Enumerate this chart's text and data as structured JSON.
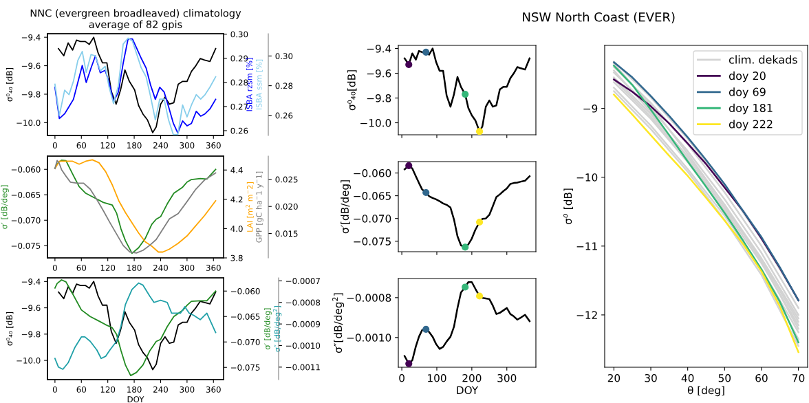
{
  "chart_data": [
    {
      "type": "line",
      "title": "NNC (evergreen broadleaved) climatology\naverage of 82 gpis",
      "ylabel": "σ⁰₄₀ [dB]",
      "y2label": "ISBA rzsm [%]",
      "y3label": "ISBA ssm [%]",
      "xlim": [
        -17,
        383
      ],
      "xticks": [
        0,
        60,
        120,
        180,
        240,
        300,
        360
      ],
      "ylim": [
        -10.09,
        -9.375
      ],
      "yticks": [
        -9.4,
        -9.6,
        -9.8,
        {
          "value": -10.0,
          "label": "−10.0"
        }
      ],
      "y2lim": [
        0.258,
        0.3002
      ],
      "y2ticks": [
        0.26,
        0.27,
        0.28,
        0.29,
        {
          "value": 0.3,
          "label": "0.30"
        }
      ],
      "y3lim": [
        0.2465,
        0.315
      ],
      "y3ticks": [
        0.26,
        0.28,
        {
          "value": 0.3,
          "label": "0.30"
        }
      ],
      "series": [
        {
          "color": "#000000",
          "x": [
            8,
            20,
            30,
            40,
            49,
            58,
            69,
            78,
            88,
            98,
            108,
            118,
            128,
            139,
            149,
            159,
            169,
            181,
            190,
            200,
            210,
            222,
            230,
            240,
            250,
            260,
            270,
            280,
            290,
            300,
            310,
            320,
            330,
            340,
            352,
            365
          ],
          "values": [
            -9.48,
            -9.53,
            -9.44,
            -9.49,
            -9.42,
            -9.43,
            -9.43,
            -9.45,
            -9.4,
            -9.51,
            -9.58,
            -9.58,
            -9.78,
            -9.87,
            -9.77,
            -9.63,
            -9.71,
            -9.77,
            -9.88,
            -9.94,
            -9.98,
            -10.07,
            -10.03,
            -9.87,
            -9.82,
            -9.87,
            -9.86,
            -9.73,
            -9.71,
            -9.71,
            -9.64,
            -9.6,
            -9.55,
            -9.56,
            -9.57,
            -9.48
          ]
        },
        {
          "color": "#0000ff",
          "axis": "y2",
          "x": [
            0,
            10,
            22,
            32,
            42,
            52,
            62,
            71,
            82,
            92,
            103,
            114,
            123,
            133,
            144,
            155,
            166,
            176,
            186,
            196,
            207,
            217,
            228,
            238,
            248,
            258,
            269,
            279,
            290,
            300,
            310,
            321,
            331,
            341,
            352,
            365
          ],
          "values": [
            0.278,
            0.265,
            0.267,
            0.27,
            0.273,
            0.28,
            0.287,
            0.28,
            0.286,
            0.291,
            0.284,
            0.285,
            0.28,
            0.272,
            0.276,
            0.288,
            0.298,
            0.298,
            0.294,
            0.29,
            0.286,
            0.279,
            0.273,
            0.278,
            0.276,
            0.27,
            0.263,
            0.259,
            0.264,
            0.262,
            0.263,
            0.268,
            0.266,
            0.267,
            0.269,
            0.273
          ]
        },
        {
          "color": "#87ceeb",
          "axis": "y3",
          "x": [
            0,
            10,
            22,
            32,
            42,
            52,
            62,
            71,
            82,
            92,
            103,
            114,
            123,
            133,
            144,
            155,
            166,
            176,
            186,
            196,
            207,
            217,
            228,
            238,
            248,
            258,
            269,
            279,
            290,
            300,
            310,
            321,
            331,
            341,
            352,
            365
          ],
          "values": [
            0.281,
            0.26,
            0.277,
            0.274,
            0.283,
            0.297,
            0.303,
            0.289,
            0.301,
            0.3,
            0.29,
            0.293,
            0.279,
            0.268,
            0.28,
            0.308,
            0.312,
            0.31,
            0.301,
            0.292,
            0.286,
            0.273,
            0.257,
            0.271,
            0.271,
            0.257,
            0.247,
            0.247,
            0.267,
            0.259,
            0.267,
            0.274,
            0.271,
            0.274,
            0.279,
            0.286
          ]
        }
      ]
    },
    {
      "type": "line",
      "ylabel": "σ′ [dB/deg]",
      "y2label": "LAI [m$^{2}$ m$^{−}$2]",
      "y3label": "GPP [gC ha$^{−}$1 y$^{−}$1]",
      "xlim": [
        -17,
        383
      ],
      "xticks": [
        0,
        60,
        120,
        180,
        240,
        300,
        360
      ],
      "ylim": [
        -0.0774,
        -0.0574
      ],
      "yticks": [
        {
          "value": -0.06,
          "label": "−0.060"
        },
        -0.065,
        {
          "value": -0.07,
          "label": "−0.070"
        },
        -0.075
      ],
      "y2lim": [
        3.8,
        4.495
      ],
      "y2ticks": [
        3.8,
        {
          "value": 4,
          "label": "4.0"
        },
        4.2,
        4.4
      ],
      "y3lim": [
        0.0105,
        0.0293
      ],
      "y3ticks": [
        0.015,
        {
          "value": 0.02,
          "label": "0.020"
        },
        0.025
      ],
      "series": [
        {
          "color": "#228b22",
          "x": [
            0,
            5,
            15,
            25,
            40,
            55,
            70,
            90,
            110,
            130,
            140,
            150,
            160,
            175,
            190,
            205,
            220,
            230,
            240,
            255,
            270,
            290,
            300,
            310,
            330,
            345,
            365
          ],
          "values": [
            -0.0598,
            -0.0589,
            -0.0582,
            -0.0583,
            -0.0609,
            -0.0634,
            -0.0647,
            -0.0656,
            -0.0665,
            -0.067,
            -0.0686,
            -0.0717,
            -0.074,
            -0.0765,
            -0.0754,
            -0.0736,
            -0.0708,
            -0.0698,
            -0.0693,
            -0.0668,
            -0.0647,
            -0.0635,
            -0.0625,
            -0.062,
            -0.0618,
            -0.0619,
            -0.06
          ]
        },
        {
          "color": "#ffa500",
          "axis": "y2",
          "x": [
            0,
            10,
            25,
            40,
            55,
            70,
            85,
            100,
            115,
            130,
            145,
            160,
            175,
            190,
            205,
            220,
            235,
            245,
            260,
            280,
            300,
            320,
            340,
            365
          ],
          "values": [
            4.41,
            4.46,
            4.46,
            4.46,
            4.44,
            4.46,
            4.47,
            4.45,
            4.39,
            4.3,
            4.19,
            4.11,
            4.04,
            3.97,
            3.91,
            3.88,
            3.84,
            3.84,
            3.86,
            3.9,
            3.95,
            4.02,
            4.09,
            4.19
          ]
        },
        {
          "color": "#808080",
          "axis": "y3",
          "x": [
            0,
            5,
            10,
            15,
            25,
            35,
            50,
            65,
            80,
            95,
            110,
            125,
            140,
            155,
            170,
            185,
            200,
            215,
            230,
            245,
            260,
            280,
            300,
            320,
            340,
            365
          ],
          "values": [
            0.027,
            0.0285,
            0.0279,
            0.0268,
            0.0256,
            0.0245,
            0.0243,
            0.0243,
            0.0232,
            0.0213,
            0.0192,
            0.017,
            0.0149,
            0.0128,
            0.0116,
            0.0114,
            0.0119,
            0.0128,
            0.0139,
            0.0158,
            0.0177,
            0.0187,
            0.0209,
            0.0232,
            0.0249,
            0.0262
          ]
        }
      ]
    },
    {
      "type": "line",
      "xlabel": "DOY",
      "ylabel": "σ⁰₄₀ [dB]",
      "y2label": "σ′ [dB/deg]",
      "y3label": "σ″ [dB/deg$^{2}$]",
      "xlim": [
        -17,
        383
      ],
      "xticks": [
        0,
        60,
        120,
        180,
        240,
        300,
        360
      ],
      "ylim": [
        -10.146,
        -9.372
      ],
      "yticks": [
        -9.4,
        -9.6,
        -9.8,
        {
          "value": -10.0,
          "label": "−10.0"
        }
      ],
      "y2lim": [
        -0.0774,
        -0.0574
      ],
      "y2ticks": [
        {
          "value": -0.06,
          "label": "−0.060"
        },
        -0.065,
        {
          "value": -0.07,
          "label": "−0.070"
        },
        -0.075
      ],
      "y3lim": [
        -0.001158,
        -0.000686
      ],
      "y3ticks": [
        -0.0007,
        -0.0008,
        -0.0009,
        {
          "value": -0.001,
          "label": "−0.0010"
        },
        -0.0011
      ],
      "series": [
        {
          "color": "#000000",
          "x": [
            8,
            20,
            30,
            40,
            49,
            58,
            69,
            78,
            88,
            98,
            108,
            118,
            128,
            139,
            149,
            159,
            169,
            181,
            190,
            200,
            210,
            222,
            230,
            240,
            250,
            260,
            270,
            280,
            290,
            300,
            310,
            320,
            330,
            340,
            352,
            365
          ],
          "values": [
            -9.48,
            -9.53,
            -9.44,
            -9.49,
            -9.42,
            -9.43,
            -9.43,
            -9.45,
            -9.4,
            -9.51,
            -9.58,
            -9.58,
            -9.78,
            -9.87,
            -9.77,
            -9.63,
            -9.71,
            -9.77,
            -9.88,
            -9.94,
            -9.98,
            -10.07,
            -10.03,
            -9.87,
            -9.82,
            -9.87,
            -9.86,
            -9.73,
            -9.71,
            -9.71,
            -9.64,
            -9.6,
            -9.55,
            -9.56,
            -9.57,
            -9.48
          ]
        },
        {
          "color": "#228b22",
          "axis": "y2",
          "x": [
            0,
            5,
            15,
            25,
            40,
            60,
            80,
            100,
            115,
            130,
            140,
            150,
            160,
            172,
            185,
            200,
            215,
            230,
            240,
            255,
            270,
            290,
            300,
            310,
            330,
            345,
            365
          ],
          "values": [
            -0.0594,
            -0.0585,
            -0.0578,
            -0.0582,
            -0.0605,
            -0.0637,
            -0.065,
            -0.0659,
            -0.0666,
            -0.0672,
            -0.0685,
            -0.0717,
            -0.0745,
            -0.0766,
            -0.076,
            -0.0745,
            -0.0718,
            -0.0699,
            -0.0695,
            -0.067,
            -0.065,
            -0.0638,
            -0.0628,
            -0.062,
            -0.0619,
            -0.0619,
            -0.06
          ]
        },
        {
          "color": "#20a0a8",
          "axis": "y3",
          "x": [
            0,
            8,
            18,
            30,
            45,
            60,
            68,
            80,
            95,
            105,
            115,
            125,
            140,
            150,
            160,
            175,
            190,
            200,
            215,
            225,
            240,
            255,
            265,
            275,
            285,
            295,
            305,
            315,
            330,
            345,
            365
          ],
          "values": [
            -0.00106,
            -0.0011,
            -0.00111,
            -0.00108,
            -0.00101,
            -0.00096,
            -0.00096,
            -0.00098,
            -0.00102,
            -0.00106,
            -0.00105,
            -0.00102,
            -0.00098,
            -0.00091,
            -0.00081,
            -0.00074,
            -0.00071,
            -0.00072,
            -0.00077,
            -0.0008,
            -0.00079,
            -0.0008,
            -0.00085,
            -0.00085,
            -0.00085,
            -0.00082,
            -0.00085,
            -0.00086,
            -0.00088,
            -0.00085,
            -0.00094
          ]
        }
      ]
    },
    {
      "type": "line",
      "ylabel": "σ⁰₄₀[dB]",
      "tick_labels": "y",
      "xlim": [
        -10,
        383
      ],
      "xticks": [
        0,
        100,
        200,
        300
      ],
      "ylim": [
        -10.097,
        -9.375
      ],
      "yticks": [
        -9.4,
        -9.6,
        -9.8,
        {
          "value": -10.0,
          "label": "−10.0"
        }
      ],
      "series": [
        {
          "color": "#000000",
          "x": [
            8,
            20,
            30,
            40,
            49,
            58,
            69,
            78,
            88,
            98,
            108,
            118,
            128,
            139,
            149,
            159,
            169,
            181,
            190,
            200,
            210,
            222,
            230,
            240,
            250,
            260,
            270,
            280,
            290,
            300,
            310,
            320,
            330,
            340,
            352,
            365
          ],
          "values": [
            -9.48,
            -9.53,
            -9.44,
            -9.49,
            -9.42,
            -9.43,
            -9.43,
            -9.45,
            -9.4,
            -9.51,
            -9.58,
            -9.58,
            -9.78,
            -9.87,
            -9.77,
            -9.63,
            -9.71,
            -9.77,
            -9.88,
            -9.94,
            -9.98,
            -10.07,
            -10.03,
            -9.87,
            -9.82,
            -9.87,
            -9.86,
            -9.73,
            -9.71,
            -9.71,
            -9.64,
            -9.6,
            -9.55,
            -9.56,
            -9.57,
            -9.48
          ]
        },
        {
          "type": "scatter",
          "marker": "circle",
          "x": [
            20,
            69,
            181,
            222
          ],
          "values": [
            -9.53,
            -9.43,
            -9.77,
            -10.07
          ],
          "colors": [
            "#440154",
            "#31688e",
            "#35b779",
            "#fde725"
          ]
        }
      ]
    },
    {
      "type": "line",
      "ylabel": "σ′[dB/deg]",
      "tick_labels": "y",
      "xlim": [
        -10,
        383
      ],
      "xticks": [
        0,
        100,
        200,
        300
      ],
      "ylim": [
        -0.0773,
        -0.0575
      ],
      "yticks": [
        {
          "value": -0.06,
          "label": "−0.060"
        },
        -0.065,
        {
          "value": -0.07,
          "label": "−0.070"
        },
        -0.075
      ],
      "series": [
        {
          "color": "#000000",
          "x": [
            8,
            20,
            30,
            40,
            49,
            58,
            69,
            78,
            88,
            98,
            108,
            118,
            128,
            139,
            149,
            159,
            169,
            181,
            190,
            200,
            210,
            222,
            230,
            240,
            250,
            260,
            270,
            280,
            290,
            300,
            310,
            320,
            330,
            340,
            352,
            365
          ],
          "values": [
            -0.0592,
            -0.0584,
            -0.059,
            -0.0607,
            -0.0622,
            -0.0636,
            -0.0643,
            -0.0651,
            -0.0655,
            -0.0658,
            -0.0662,
            -0.0667,
            -0.067,
            -0.0676,
            -0.0702,
            -0.0739,
            -0.0759,
            -0.0763,
            -0.0757,
            -0.0744,
            -0.0725,
            -0.0708,
            -0.0701,
            -0.07,
            -0.0692,
            -0.0673,
            -0.0653,
            -0.0647,
            -0.064,
            -0.0634,
            -0.0624,
            -0.0622,
            -0.0621,
            -0.0619,
            -0.0617,
            -0.0607
          ]
        },
        {
          "type": "scatter",
          "marker": "circle",
          "x": [
            20,
            69,
            181,
            222
          ],
          "values": [
            -0.0584,
            -0.0643,
            -0.0763,
            -0.0708
          ],
          "colors": [
            "#440154",
            "#31688e",
            "#35b779",
            "#fde725"
          ]
        }
      ]
    },
    {
      "type": "line",
      "xlabel": "DOY",
      "ylabel": "σ″[dB/deg$^{2}$]",
      "xlim": [
        -10,
        383
      ],
      "xticks": [
        0,
        100,
        200,
        300
      ],
      "ylim": [
        -0.001149,
        -0.000704
      ],
      "yticks": [
        -0.0008,
        {
          "value": -0.001,
          "label": "−0.0010"
        }
      ],
      "series": [
        {
          "color": "#000000",
          "x": [
            8,
            20,
            30,
            40,
            49,
            58,
            69,
            78,
            88,
            98,
            108,
            118,
            128,
            139,
            149,
            159,
            169,
            181,
            190,
            200,
            210,
            222,
            230,
            240,
            250,
            260,
            270,
            280,
            290,
            300,
            310,
            320,
            330,
            340,
            352,
            365
          ],
          "values": [
            -0.001093,
            -0.001131,
            -0.001114,
            -0.001045,
            -0.000996,
            -0.000963,
            -0.000959,
            -0.000972,
            -0.000996,
            -0.001033,
            -0.001057,
            -0.001047,
            -0.00102,
            -0.000996,
            -0.000946,
            -0.000852,
            -0.000774,
            -0.000747,
            -0.000722,
            -0.000722,
            -0.000755,
            -0.000792,
            -0.000801,
            -0.000804,
            -0.000807,
            -0.00084,
            -0.000882,
            -0.000876,
            -0.000864,
            -0.000852,
            -0.000882,
            -0.000894,
            -0.00091,
            -0.0009,
            -0.000886,
            -0.000918
          ]
        },
        {
          "type": "scatter",
          "marker": "circle",
          "x": [
            20,
            69,
            181,
            222
          ],
          "values": [
            -0.001131,
            -0.000959,
            -0.000747,
            -0.000792
          ],
          "colors": [
            "#440154",
            "#31688e",
            "#35b779",
            "#fde725"
          ]
        }
      ]
    },
    {
      "type": "line",
      "title": "NSW North Coast (EVER)",
      "xlabel": "θ [deg]",
      "ylabel": "σ$^{o}$ [dB]",
      "legend": "top right",
      "xlim": [
        17.5,
        72.5
      ],
      "xticks": [
        20,
        30,
        40,
        50,
        60,
        70
      ],
      "ylim": [
        -12.76,
        -8.085
      ],
      "yticks": [
        -9,
        -10,
        -11,
        -12
      ],
      "series": [
        {
          "name": "clim. dekads",
          "color": "#d3d3d3",
          "x": [
            20,
            30,
            40,
            50,
            60,
            70
          ],
          "values": [
            -8.32,
            -8.84,
            -9.44,
            -10.12,
            -10.9,
            -11.78
          ]
        },
        {
          "color": "#d3d3d3",
          "x": [
            20,
            30,
            40,
            50,
            60,
            70
          ],
          "values": [
            -8.4,
            -8.92,
            -9.52,
            -10.22,
            -11.0,
            -11.9
          ]
        },
        {
          "color": "#d3d3d3",
          "x": [
            20,
            30,
            40,
            50,
            60,
            70
          ],
          "values": [
            -8.48,
            -9.0,
            -9.62,
            -10.32,
            -11.1,
            -12.0
          ]
        },
        {
          "color": "#d3d3d3",
          "x": [
            20,
            30,
            40,
            50,
            60,
            70
          ],
          "values": [
            -8.55,
            -9.08,
            -9.7,
            -10.4,
            -11.18,
            -12.05
          ]
        },
        {
          "color": "#d3d3d3",
          "x": [
            20,
            30,
            40,
            50,
            60,
            70
          ],
          "values": [
            -8.62,
            -9.15,
            -9.78,
            -10.48,
            -11.25,
            -12.15
          ]
        },
        {
          "color": "#d3d3d3",
          "x": [
            20,
            30,
            40,
            50,
            60,
            70
          ],
          "values": [
            -8.35,
            -8.96,
            -9.66,
            -10.4,
            -11.22,
            -12.2
          ]
        },
        {
          "color": "#d3d3d3",
          "x": [
            20,
            30,
            40,
            50,
            60,
            70
          ],
          "values": [
            -8.7,
            -9.25,
            -9.88,
            -10.56,
            -11.33,
            -12.25
          ]
        },
        {
          "color": "#d3d3d3",
          "x": [
            20,
            30,
            40,
            50,
            60,
            70
          ],
          "values": [
            -8.45,
            -9.05,
            -9.75,
            -10.5,
            -11.35,
            -12.35
          ]
        },
        {
          "color": "#d3d3d3",
          "x": [
            20,
            30,
            40,
            50,
            60,
            70
          ],
          "values": [
            -8.75,
            -9.3,
            -9.92,
            -10.62,
            -11.42,
            -12.45
          ]
        },
        {
          "color": "#d3d3d3",
          "x": [
            20,
            30,
            40,
            50,
            60,
            70
          ],
          "values": [
            -8.58,
            -9.12,
            -9.74,
            -10.44,
            -11.2,
            -12.1
          ]
        },
        {
          "name": "doy 20",
          "color": "#440154",
          "x": [
            20,
            25,
            30,
            35,
            40,
            45,
            50,
            55,
            60,
            65,
            70
          ],
          "values": [
            -8.58,
            -8.76,
            -8.97,
            -9.22,
            -9.51,
            -9.81,
            -10.15,
            -10.49,
            -10.89,
            -11.32,
            -11.79
          ]
        },
        {
          "name": "doy 69",
          "color": "#31688e",
          "x": [
            20,
            25,
            30,
            35,
            40,
            45,
            50,
            55,
            60,
            65,
            70
          ],
          "values": [
            -8.33,
            -8.55,
            -8.82,
            -9.11,
            -9.42,
            -9.75,
            -10.1,
            -10.49,
            -10.87,
            -11.31,
            -11.79
          ]
        },
        {
          "name": "doy 181",
          "color": "#35b779",
          "x": [
            20,
            25,
            30,
            35,
            40,
            45,
            50,
            55,
            60,
            65,
            70
          ],
          "values": [
            -8.38,
            -8.66,
            -9.02,
            -9.39,
            -9.77,
            -10.14,
            -10.52,
            -10.92,
            -11.34,
            -11.81,
            -12.4
          ]
        },
        {
          "name": "doy 222",
          "color": "#fde725",
          "x": [
            20,
            25,
            30,
            35,
            40,
            45,
            50,
            55,
            60,
            65,
            70
          ],
          "values": [
            -8.8,
            -9.09,
            -9.39,
            -9.69,
            -9.98,
            -10.3,
            -10.63,
            -10.97,
            -11.37,
            -11.88,
            -12.54
          ]
        }
      ]
    }
  ]
}
